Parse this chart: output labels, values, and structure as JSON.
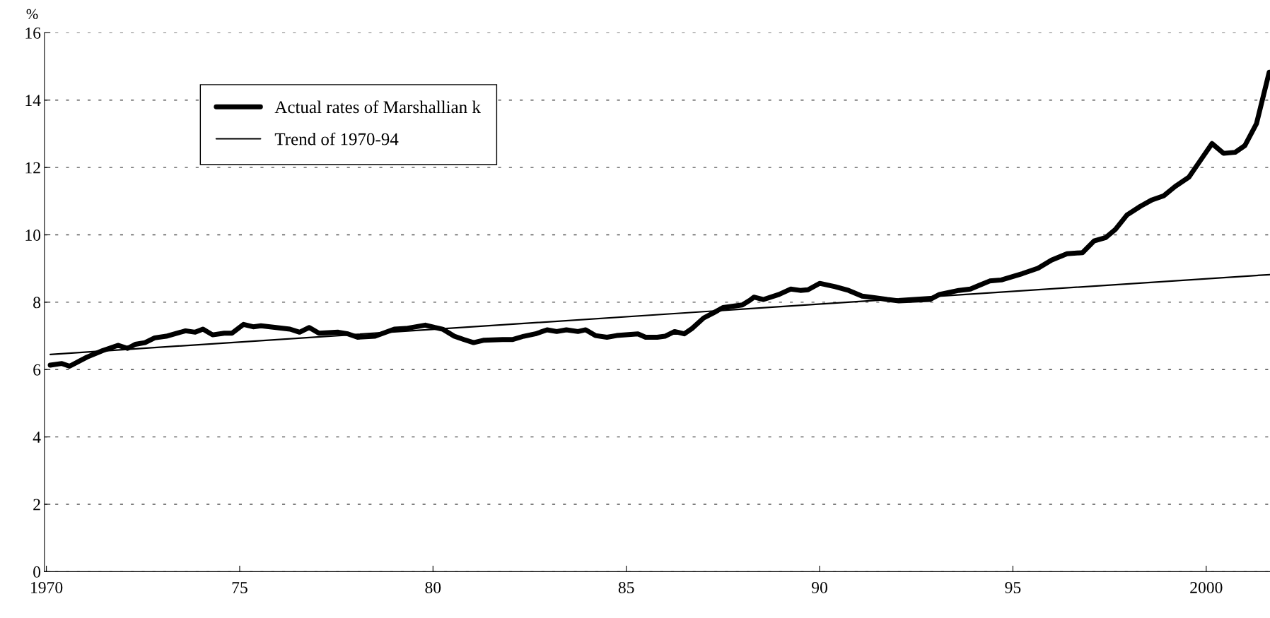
{
  "chart_data": {
    "type": "line",
    "ylabel": "%",
    "xlim": [
      1969.95,
      2001.65
    ],
    "ylim": [
      0,
      16
    ],
    "xticks": [
      {
        "value": 1970,
        "label": "1970"
      },
      {
        "value": 1975,
        "label": "75"
      },
      {
        "value": 1980,
        "label": "80"
      },
      {
        "value": 1985,
        "label": "85"
      },
      {
        "value": 1990,
        "label": "90"
      },
      {
        "value": 1995,
        "label": "95"
      },
      {
        "value": 2000,
        "label": "2000"
      }
    ],
    "yticks": [
      0,
      2,
      4,
      6,
      8,
      10,
      12,
      14,
      16
    ],
    "grid": "y",
    "legend": "top left",
    "marker": "none",
    "line_style": "solid",
    "series": [
      {
        "name": "Actual rates of Marshallian k",
        "color": "#000000",
        "x": [
          1970.1,
          1970.4,
          1970.6,
          1971.05,
          1971.45,
          1971.85,
          1972.1,
          1972.3,
          1972.55,
          1972.8,
          1973.1,
          1973.6,
          1973.85,
          1974.05,
          1974.3,
          1974.6,
          1974.8,
          1975.1,
          1975.35,
          1975.55,
          1976.3,
          1976.55,
          1976.8,
          1977.05,
          1977.55,
          1977.8,
          1978.05,
          1978.5,
          1979.0,
          1979.3,
          1979.8,
          1980.05,
          1980.25,
          1980.55,
          1980.8,
          1981.05,
          1981.3,
          1981.8,
          1982.05,
          1982.35,
          1982.65,
          1982.95,
          1983.2,
          1983.45,
          1983.75,
          1983.95,
          1984.2,
          1984.5,
          1984.75,
          1985.3,
          1985.5,
          1985.8,
          1986.0,
          1986.25,
          1986.5,
          1986.7,
          1987.0,
          1987.25,
          1987.5,
          1988.0,
          1988.2,
          1988.3,
          1988.55,
          1988.95,
          1989.25,
          1989.5,
          1989.7,
          1990.0,
          1990.4,
          1990.75,
          1991.1,
          1991.45,
          1991.75,
          1992.05,
          1992.45,
          1992.85,
          1993.1,
          1993.6,
          1993.9,
          1994.15,
          1994.4,
          1994.7,
          1995.25,
          1995.65,
          1996.0,
          1996.4,
          1996.8,
          1997.1,
          1997.4,
          1997.65,
          1997.95,
          1998.3,
          1998.6,
          1998.9,
          1999.2,
          1999.55,
          1999.85,
          2000.15,
          2000.45,
          2000.75,
          2001.0,
          2001.3,
          2001.63
        ],
        "values": [
          6.13,
          6.18,
          6.1,
          6.37,
          6.56,
          6.72,
          6.63,
          6.75,
          6.8,
          6.94,
          6.99,
          7.15,
          7.11,
          7.2,
          7.03,
          7.08,
          7.08,
          7.34,
          7.27,
          7.3,
          7.2,
          7.11,
          7.25,
          7.08,
          7.11,
          7.06,
          6.96,
          6.99,
          7.2,
          7.22,
          7.32,
          7.25,
          7.2,
          6.99,
          6.89,
          6.8,
          6.87,
          6.89,
          6.89,
          6.99,
          7.06,
          7.18,
          7.13,
          7.18,
          7.13,
          7.18,
          7.01,
          6.96,
          7.01,
          7.06,
          6.96,
          6.96,
          6.99,
          7.13,
          7.06,
          7.22,
          7.53,
          7.68,
          7.84,
          7.92,
          8.06,
          8.15,
          8.08,
          8.23,
          8.39,
          8.35,
          8.37,
          8.56,
          8.46,
          8.35,
          8.18,
          8.13,
          8.08,
          8.04,
          8.06,
          8.08,
          8.23,
          8.35,
          8.39,
          8.51,
          8.63,
          8.66,
          8.85,
          9.01,
          9.25,
          9.44,
          9.47,
          9.82,
          9.92,
          10.16,
          10.59,
          10.85,
          11.04,
          11.16,
          11.44,
          11.71,
          12.21,
          12.71,
          12.42,
          12.45,
          12.65,
          13.3,
          14.83
        ]
      },
      {
        "name": "Trend of 1970-94",
        "color": "#000000",
        "x": [
          1970.1,
          2001.65
        ],
        "values": [
          6.45,
          8.82
        ]
      }
    ]
  }
}
